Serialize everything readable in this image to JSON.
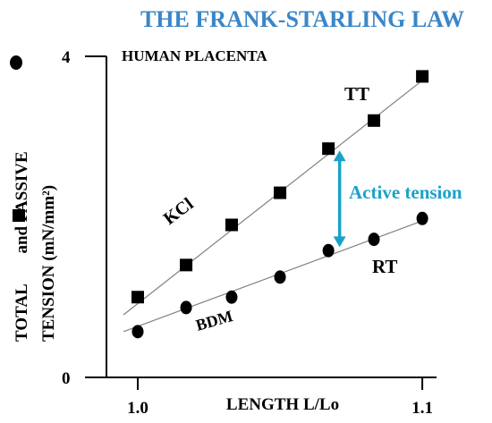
{
  "chart_data": {
    "type": "scatter",
    "title": "THE FRANK-STARLING LAW",
    "subtitle": "HUMAN PLACENTA",
    "xlabel": "LENGTH L/Lo",
    "ylabel_line1": "TOTAL",
    "ylabel_line1b": "and PASSIVE",
    "ylabel_line2": "TENSION (mN/mm²)",
    "x_ticks": [
      {
        "value": 1.0,
        "label": "1.0"
      },
      {
        "value": 1.1,
        "label": "1.1"
      }
    ],
    "y_ticks": [
      {
        "value": 0,
        "label": "0"
      },
      {
        "value": 4,
        "label": "4"
      }
    ],
    "xlim": [
      0.989,
      1.105
    ],
    "ylim": [
      0,
      4.0
    ],
    "grid": false,
    "series": [
      {
        "name": "TT",
        "marker": "square",
        "x": [
          1.0,
          1.017,
          1.033,
          1.05,
          1.067,
          1.083,
          1.1
        ],
        "y": [
          1.0,
          1.4,
          1.9,
          2.3,
          2.85,
          3.2,
          3.75
        ],
        "fit": {
          "x": [
            0.995,
            1.1
          ],
          "y": [
            0.78,
            3.7
          ]
        },
        "fit_label": "KCl"
      },
      {
        "name": "RT",
        "marker": "circle",
        "x": [
          1.0,
          1.017,
          1.033,
          1.05,
          1.067,
          1.083,
          1.1
        ],
        "y": [
          0.57,
          0.87,
          1.0,
          1.25,
          1.58,
          1.72,
          1.98
        ],
        "fit": {
          "x": [
            0.995,
            1.1
          ],
          "y": [
            0.57,
            1.95
          ]
        },
        "fit_label": "BDM"
      }
    ],
    "annotation": {
      "text": "Active tension",
      "x": 1.07,
      "y_from": 1.6,
      "y_to": 2.85,
      "color": "#1aa3c7"
    },
    "colors": {
      "title": "#3a86c8",
      "markers": "#000000",
      "fit_lines": "#808080",
      "annotation": "#1aa3c7"
    }
  }
}
